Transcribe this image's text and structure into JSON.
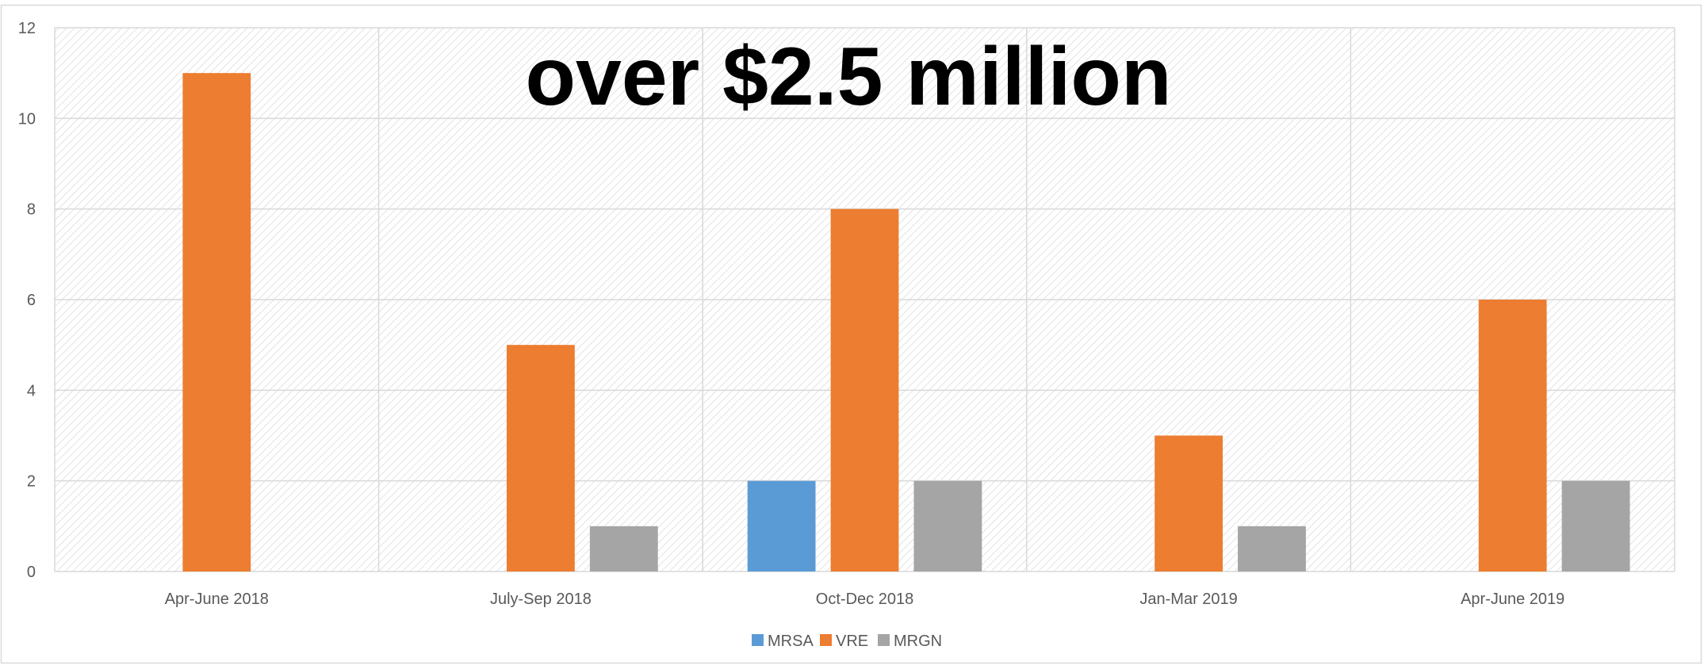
{
  "colors": {
    "mrsa": "#5b9bd5",
    "vre": "#ed7d31",
    "mrgn": "#a5a5a5",
    "grid": "#d9d9d9",
    "hatch": "#e3e3e3",
    "axis_text": "#595959",
    "title": "#000000"
  },
  "chart_data": {
    "type": "bar",
    "title": "over $2.5 million",
    "xlabel": "",
    "ylabel": "",
    "categories": [
      "Apr-June 2018",
      "July-Sep 2018",
      "Oct-Dec 2018",
      "Jan-Mar 2019",
      "Apr-June 2019"
    ],
    "series": [
      {
        "name": "MRSA",
        "values": [
          0,
          0,
          2,
          0,
          0
        ]
      },
      {
        "name": "VRE",
        "values": [
          11,
          5,
          8,
          3,
          6
        ]
      },
      {
        "name": "MRGN",
        "values": [
          0,
          1,
          2,
          1,
          2
        ]
      }
    ],
    "ylim": [
      0,
      12
    ],
    "yticks": [
      "0",
      "2",
      "4",
      "6",
      "8",
      "10",
      "12"
    ],
    "grid": true,
    "legend_position": "bottom-center"
  }
}
